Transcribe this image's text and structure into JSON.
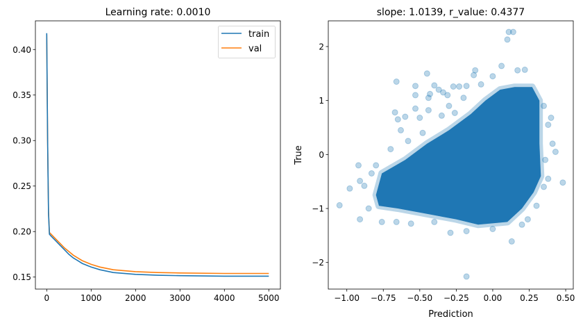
{
  "chart_data": [
    {
      "type": "line",
      "title": "Learning rate: 0.0010",
      "xlabel": "",
      "ylabel": "",
      "xlim": [
        -255,
        5261
      ],
      "ylim": [
        0.1368,
        0.4315
      ],
      "xticks": [
        0,
        1000,
        2000,
        3000,
        4000,
        5000
      ],
      "xtick_labels": [
        "0",
        "1000",
        "2000",
        "3000",
        "4000",
        "5000"
      ],
      "yticks": [
        0.15,
        0.2,
        0.25,
        0.3,
        0.35,
        0.4
      ],
      "ytick_labels": [
        "0.15",
        "0.20",
        "0.25",
        "0.30",
        "0.35",
        "0.40"
      ],
      "grid": false,
      "legend_placement": "top-right",
      "series": [
        {
          "name": "train",
          "color": "#1f77b4",
          "x": [
            0,
            20,
            40,
            60,
            100,
            200,
            300,
            400,
            500,
            600,
            700,
            800,
            1000,
            1200,
            1500,
            2000,
            2500,
            3000,
            4000,
            5000
          ],
          "y": [
            0.418,
            0.3,
            0.22,
            0.197,
            0.195,
            0.19,
            0.185,
            0.18,
            0.175,
            0.171,
            0.168,
            0.165,
            0.161,
            0.158,
            0.155,
            0.153,
            0.152,
            0.1515,
            0.151,
            0.151
          ]
        },
        {
          "name": "val",
          "color": "#ff7f0e",
          "x": [
            0,
            20,
            40,
            60,
            100,
            200,
            300,
            400,
            500,
            600,
            700,
            800,
            1000,
            1200,
            1500,
            2000,
            2500,
            3000,
            4000,
            5000
          ],
          "y": [
            0.416,
            0.3,
            0.222,
            0.199,
            0.197,
            0.192,
            0.187,
            0.182,
            0.178,
            0.174,
            0.171,
            0.168,
            0.164,
            0.161,
            0.158,
            0.156,
            0.155,
            0.1545,
            0.154,
            0.154
          ]
        }
      ]
    },
    {
      "type": "scatter",
      "title": "slope: 1.0139, r_value: 0.4377",
      "xlabel": "Prediction",
      "ylabel": "True",
      "xlim": [
        -1.127,
        0.552
      ],
      "ylim": [
        -2.493,
        2.476
      ],
      "xticks": [
        -1.0,
        -0.75,
        -0.5,
        -0.25,
        0.0,
        0.25,
        0.5
      ],
      "xtick_labels": [
        "−1.00",
        "−0.75",
        "−0.50",
        "−0.25",
        "0.00",
        "0.25",
        "0.50"
      ],
      "yticks": [
        -2,
        -1,
        0,
        1,
        2
      ],
      "ytick_labels": [
        "−2",
        "−1",
        "0",
        "1",
        "2"
      ],
      "grid": false,
      "color": "#1f77b4",
      "alpha": 0.3,
      "dense_region": [
        [
          -0.8,
          -0.75
        ],
        [
          -0.76,
          -0.35
        ],
        [
          -0.6,
          -0.1
        ],
        [
          -0.45,
          0.2
        ],
        [
          -0.3,
          0.45
        ],
        [
          -0.15,
          0.75
        ],
        [
          -0.05,
          1.0
        ],
        [
          0.05,
          1.2
        ],
        [
          0.15,
          1.25
        ],
        [
          0.27,
          1.25
        ],
        [
          0.32,
          1.0
        ],
        [
          0.32,
          0.2
        ],
        [
          0.33,
          -0.4
        ],
        [
          0.28,
          -0.7
        ],
        [
          0.2,
          -1.0
        ],
        [
          0.1,
          -1.25
        ],
        [
          -0.1,
          -1.3
        ],
        [
          -0.25,
          -1.2
        ],
        [
          -0.45,
          -1.1
        ],
        [
          -0.65,
          -1.0
        ],
        [
          -0.78,
          -0.95
        ]
      ],
      "points": [
        [
          -1.05,
          -0.94
        ],
        [
          -0.98,
          -0.63
        ],
        [
          -0.92,
          -0.2
        ],
        [
          -0.91,
          -0.49
        ],
        [
          -0.91,
          -1.2
        ],
        [
          -0.88,
          -0.58
        ],
        [
          -0.85,
          -1.0
        ],
        [
          -0.76,
          -1.25
        ],
        [
          -0.66,
          1.35
        ],
        [
          -0.67,
          0.78
        ],
        [
          -0.65,
          0.65
        ],
        [
          -0.63,
          0.45
        ],
        [
          -0.6,
          0.7
        ],
        [
          -0.53,
          1.27
        ],
        [
          -0.53,
          1.1
        ],
        [
          -0.53,
          0.85
        ],
        [
          -0.5,
          0.68
        ],
        [
          -0.45,
          1.5
        ],
        [
          -0.43,
          1.12
        ],
        [
          -0.44,
          1.05
        ],
        [
          -0.44,
          0.82
        ],
        [
          -0.4,
          1.28
        ],
        [
          -0.37,
          1.2
        ],
        [
          -0.34,
          1.15
        ],
        [
          -0.31,
          1.1
        ],
        [
          -0.27,
          1.26
        ],
        [
          -0.23,
          1.26
        ],
        [
          -0.18,
          1.27
        ],
        [
          -0.12,
          1.56
        ],
        [
          -0.13,
          1.47
        ],
        [
          0.06,
          1.64
        ],
        [
          0.1,
          2.13
        ],
        [
          0.11,
          2.27
        ],
        [
          0.14,
          2.27
        ],
        [
          0.17,
          1.56
        ],
        [
          0.22,
          1.57
        ],
        [
          0.4,
          0.68
        ],
        [
          0.38,
          0.55
        ],
        [
          0.43,
          0.05
        ],
        [
          0.41,
          0.2
        ],
        [
          0.48,
          -0.52
        ],
        [
          0.38,
          -0.45
        ],
        [
          0.13,
          -1.61
        ],
        [
          -0.18,
          -2.26
        ],
        [
          -0.29,
          -1.45
        ],
        [
          -0.18,
          -1.42
        ],
        [
          -0.56,
          -1.28
        ],
        [
          -0.66,
          -1.25
        ],
        [
          0.3,
          -0.95
        ],
        [
          0.24,
          -1.2
        ],
        [
          -0.35,
          0.72
        ],
        [
          -0.3,
          0.9
        ],
        [
          -0.26,
          0.77
        ],
        [
          -0.8,
          -0.2
        ],
        [
          -0.83,
          -0.35
        ],
        [
          -0.7,
          0.1
        ],
        [
          -0.58,
          0.25
        ],
        [
          -0.48,
          0.4
        ],
        [
          -0.2,
          1.05
        ],
        [
          -0.08,
          1.3
        ],
        [
          0.0,
          1.45
        ],
        [
          0.35,
          0.9
        ],
        [
          0.36,
          -0.1
        ],
        [
          0.35,
          -0.6
        ],
        [
          0.0,
          -1.38
        ],
        [
          -0.4,
          -1.25
        ],
        [
          0.2,
          -1.3
        ]
      ]
    }
  ]
}
